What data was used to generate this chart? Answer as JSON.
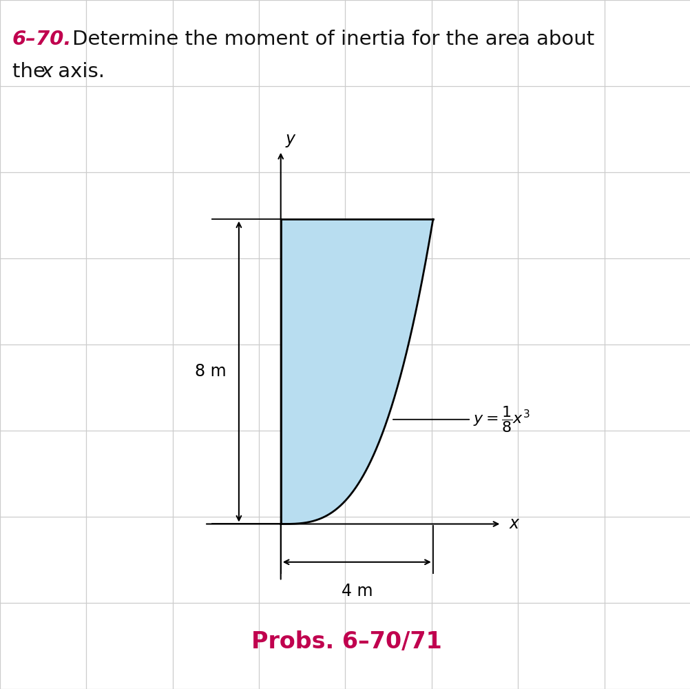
{
  "title_number": "6–70.",
  "title_number_color": "#c0004e",
  "background_color": "#f0f0f0",
  "grid_color": "#cccccc",
  "fill_color": "#b8ddf0",
  "curve_color": "#000000",
  "curve_lw": 2.0,
  "border_lw": 2.0,
  "x_max": 4,
  "y_max": 8,
  "label_8m": "8 m",
  "label_4m": "4 m",
  "prob_label": "Probs. 6–70/71",
  "prob_color": "#c0004e",
  "axis_label_x": "x",
  "axis_label_y": "y",
  "title_line1": "Determine the moment of inertia for the area about",
  "title_line2": "the x axis.",
  "title_fontsize": 21,
  "prob_fontsize": 24
}
